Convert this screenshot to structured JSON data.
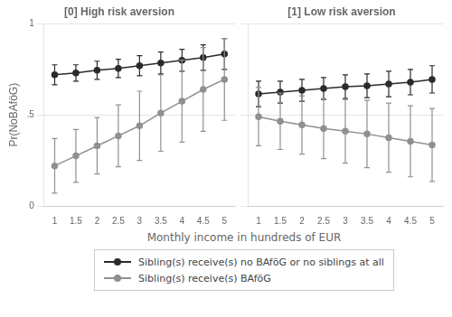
{
  "chart_data": [
    {
      "type": "line",
      "title": "[0] High risk aversion",
      "xlabel": "Monthly income in hundreds of EUR",
      "ylabel": "Pr(NoBAföG)",
      "x": [
        1,
        1.5,
        2,
        2.5,
        3,
        3.5,
        4,
        4.5,
        5
      ],
      "xlim": [
        0.75,
        5.25
      ],
      "xticks": [
        1,
        1.5,
        2,
        2.5,
        3,
        3.5,
        4,
        4.5,
        5
      ],
      "ylim": [
        0,
        1.0
      ],
      "yticks": [
        0,
        {
          "value": 0.5,
          "label": ".5"
        },
        1
      ],
      "grid": "y",
      "legend": "bottom",
      "series": [
        {
          "name": "Sibling(s) receive(s) no BAföG or no siblings at all",
          "color": "#2b2b2b",
          "values": [
            0.72,
            0.73,
            0.745,
            0.755,
            0.77,
            0.785,
            0.8,
            0.815,
            0.835
          ],
          "lower": [
            0.665,
            0.685,
            0.695,
            0.705,
            0.715,
            0.725,
            0.74,
            0.745,
            0.75
          ],
          "upper": [
            0.775,
            0.775,
            0.795,
            0.805,
            0.825,
            0.845,
            0.86,
            0.885,
            0.92
          ]
        },
        {
          "name": "Sibling(s) receive(s) BAföG",
          "color": "#909090",
          "values": [
            0.22,
            0.275,
            0.33,
            0.385,
            0.44,
            0.51,
            0.575,
            0.64,
            0.695
          ],
          "lower": [
            0.07,
            0.13,
            0.175,
            0.215,
            0.25,
            0.3,
            0.35,
            0.41,
            0.47
          ],
          "upper": [
            0.37,
            0.42,
            0.485,
            0.555,
            0.63,
            0.72,
            0.8,
            0.87,
            0.92
          ]
        }
      ]
    },
    {
      "type": "line",
      "title": "[1] Low risk aversion",
      "x": [
        1,
        1.5,
        2,
        2.5,
        3,
        3.5,
        4,
        4.5,
        5
      ],
      "xlim": [
        0.75,
        5.25
      ],
      "xticks": [
        1,
        1.5,
        2,
        2.5,
        3,
        3.5,
        4,
        4.5,
        5
      ],
      "ylim": [
        0,
        1.0
      ],
      "yticks": [
        0,
        {
          "value": 0.5,
          "label": ".5"
        },
        1
      ],
      "grid": "y",
      "tick_labels": "x",
      "series": [
        {
          "name": "Sibling(s) receive(s) no BAföG or no siblings at all",
          "color": "#2b2b2b",
          "values": [
            0.615,
            0.625,
            0.635,
            0.645,
            0.655,
            0.66,
            0.67,
            0.68,
            0.695
          ],
          "lower": [
            0.545,
            0.565,
            0.575,
            0.585,
            0.59,
            0.595,
            0.6,
            0.61,
            0.62
          ],
          "upper": [
            0.685,
            0.685,
            0.695,
            0.705,
            0.72,
            0.725,
            0.74,
            0.75,
            0.77
          ]
        },
        {
          "name": "Sibling(s) receive(s) BAföG",
          "color": "#909090",
          "values": [
            0.49,
            0.465,
            0.445,
            0.425,
            0.41,
            0.395,
            0.375,
            0.355,
            0.335
          ],
          "lower": [
            0.33,
            0.31,
            0.285,
            0.26,
            0.235,
            0.21,
            0.185,
            0.16,
            0.135
          ],
          "upper": [
            0.65,
            0.62,
            0.605,
            0.59,
            0.585,
            0.58,
            0.565,
            0.55,
            0.535
          ]
        }
      ]
    }
  ]
}
